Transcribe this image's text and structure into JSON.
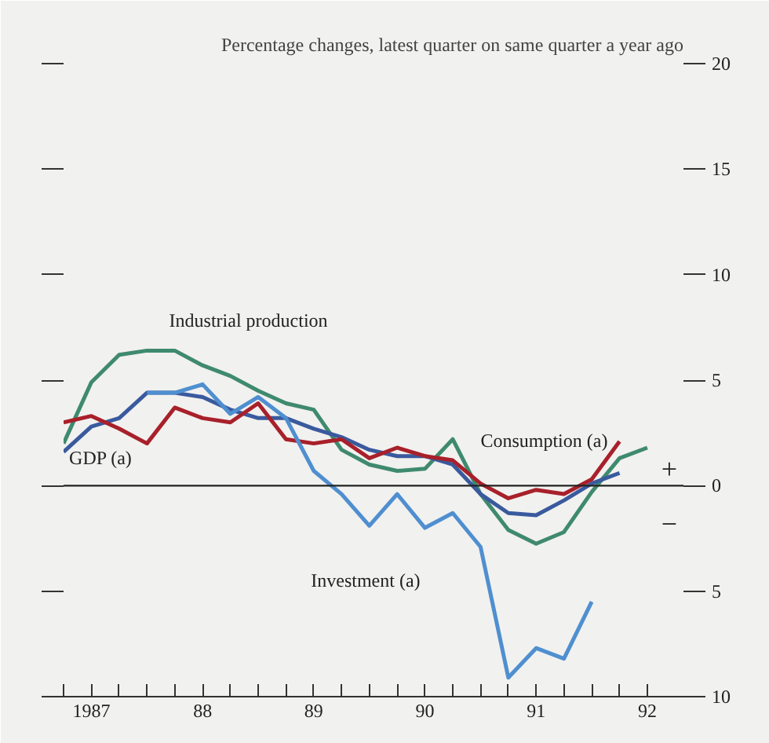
{
  "chart_data": {
    "type": "line",
    "title": "Percentage changes, latest quarter on same quarter a year ago",
    "categories": [
      null,
      "1987",
      null,
      null,
      null,
      "88",
      null,
      null,
      null,
      "89",
      null,
      null,
      null,
      "90",
      null,
      null,
      null,
      "91",
      null,
      null,
      null,
      "92"
    ],
    "series": [
      {
        "name": "Industrial production",
        "color": "#3f8a6e",
        "values": [
          2.0,
          4.9,
          6.2,
          6.4,
          6.4,
          5.7,
          5.2,
          4.5,
          3.9,
          3.6,
          1.7,
          1.0,
          0.7,
          0.8,
          2.2,
          -0.4,
          -2.1,
          -2.75,
          -2.2,
          -0.3,
          1.3,
          1.8
        ]
      },
      {
        "name": "GDP (a)",
        "color": "#3a5a9e",
        "values": [
          1.6,
          2.8,
          3.2,
          4.4,
          4.4,
          4.2,
          3.6,
          3.2,
          3.2,
          2.7,
          2.3,
          1.7,
          1.4,
          1.4,
          1.0,
          -0.4,
          -1.3,
          -1.4,
          -0.7,
          0.1,
          0.6,
          null
        ]
      },
      {
        "name": "Consumption (a)",
        "color": "#a8202a",
        "values": [
          3.0,
          3.3,
          2.7,
          2.0,
          3.7,
          3.2,
          3.0,
          3.9,
          2.2,
          2.0,
          2.2,
          1.3,
          1.8,
          1.4,
          1.2,
          0.1,
          -0.6,
          -0.2,
          -0.4,
          0.3,
          2.1,
          null
        ]
      },
      {
        "name": "Investment (a)",
        "color": "#4f8fd0",
        "values": [
          null,
          null,
          null,
          4.4,
          4.4,
          4.8,
          3.4,
          4.2,
          3.2,
          0.7,
          -0.4,
          -1.9,
          -0.4,
          -2.0,
          -1.3,
          -2.9,
          -9.1,
          -7.7,
          -8.2,
          -5.5,
          null,
          null
        ]
      }
    ],
    "ylim": [
      -10,
      20
    ],
    "yticks": [
      20,
      15,
      10,
      5,
      0,
      {
        "value": -5,
        "label": "5"
      },
      {
        "value": -10,
        "label": "10"
      }
    ],
    "ref_lines": [
      {
        "axis": "y",
        "value": 0,
        "label": null,
        "color": "#222222"
      }
    ],
    "annotations": [
      "+",
      "−"
    ],
    "grid": false,
    "marker": "none",
    "line_style": "solid"
  }
}
